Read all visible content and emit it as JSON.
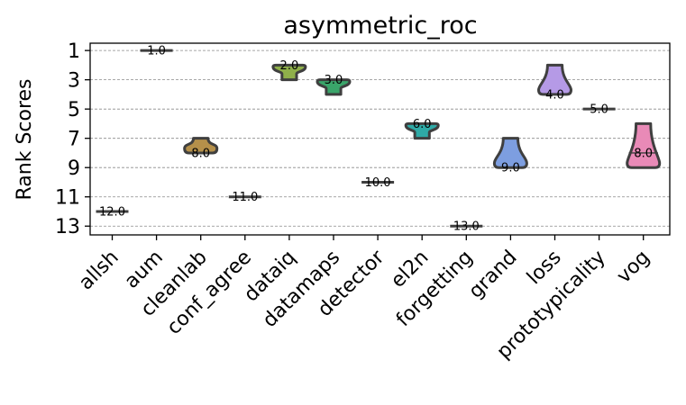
{
  "chart_data": {
    "type": "violin",
    "title": "asymmetric_roc",
    "ylabel": "Rank Scores",
    "xlabel": "",
    "ylim": [
      13.6,
      0.5
    ],
    "yticks": [
      1,
      3,
      5,
      7,
      9,
      11,
      13
    ],
    "grid": true,
    "categories": [
      "allsh",
      "aum",
      "cleanlab",
      "conf_agree",
      "dataiq",
      "datamaps",
      "detector",
      "el2n",
      "forgetting",
      "grand",
      "loss",
      "prototypicality",
      "vog"
    ],
    "series": [
      {
        "category": "allsh",
        "median": 12.0,
        "min": 12,
        "max": 12,
        "label": "12.0",
        "color": "#4c72b0"
      },
      {
        "category": "aum",
        "median": 1.0,
        "min": 1,
        "max": 1,
        "label": "1.0",
        "color": "#dd8452"
      },
      {
        "category": "cleanlab",
        "median": 8.0,
        "min": 7,
        "max": 8,
        "label": "8.0",
        "color": "#b5904a"
      },
      {
        "category": "conf_agree",
        "median": 11.0,
        "min": 11,
        "max": 11,
        "label": "11.0",
        "color": "#c44e52"
      },
      {
        "category": "dataiq",
        "median": 2.0,
        "min": 2,
        "max": 3,
        "label": "2.0",
        "color": "#8fb04a"
      },
      {
        "category": "datamaps",
        "median": 3.0,
        "min": 3,
        "max": 4,
        "label": "3.0",
        "color": "#3aa56a"
      },
      {
        "category": "detector",
        "median": 10.0,
        "min": 10,
        "max": 10,
        "label": "10.0",
        "color": "#937860"
      },
      {
        "category": "el2n",
        "median": 6.0,
        "min": 6,
        "max": 7,
        "label": "6.0",
        "color": "#2eaaa6"
      },
      {
        "category": "forgetting",
        "median": 13.0,
        "min": 13,
        "max": 13,
        "label": "13.0",
        "color": "#8c8c8c"
      },
      {
        "category": "grand",
        "median": 9.0,
        "min": 7,
        "max": 9,
        "label": "9.0",
        "color": "#7d9ee0"
      },
      {
        "category": "loss",
        "median": 4.0,
        "min": 2,
        "max": 4,
        "label": "4.0",
        "color": "#b59ae6"
      },
      {
        "category": "prototypicality",
        "median": 5.0,
        "min": 5,
        "max": 5,
        "label": "5.0",
        "color": "#ccb974"
      },
      {
        "category": "vog",
        "median": 8.0,
        "min": 6,
        "max": 9,
        "label": "8.0",
        "color": "#e98ab7"
      }
    ]
  }
}
